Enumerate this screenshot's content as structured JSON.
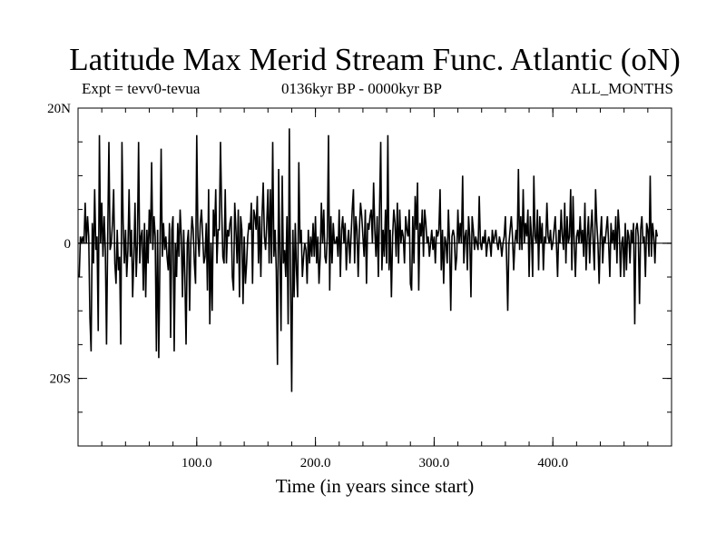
{
  "header": {
    "title": "Latitude Max Merid Stream Func. Atlantic (oN)",
    "left_label": "Expt = tevv0-tevua",
    "center_label": "0136kyr BP - 0000kyr BP",
    "right_label": "ALL_MONTHS"
  },
  "chart_data": {
    "type": "line",
    "title": "Latitude Max Merid Stream Func. Atlantic (oN)",
    "xlabel": "Time (in years since start)",
    "ylabel": "",
    "xlim": [
      0,
      500
    ],
    "ylim": [
      -30,
      20
    ],
    "x_ticks": [
      {
        "value": 100,
        "label": "100.0"
      },
      {
        "value": 200,
        "label": "200.0"
      },
      {
        "value": 300,
        "label": "300.0"
      },
      {
        "value": 400,
        "label": "400.0"
      }
    ],
    "y_ticks": [
      {
        "value": 20,
        "label": "20N"
      },
      {
        "value": 0,
        "label": "0"
      },
      {
        "value": -20,
        "label": "20S"
      }
    ],
    "x_minor_step": 20,
    "y_minor_step": 5,
    "grid": false,
    "line_color": "#000000",
    "series": [
      {
        "x_start": 1,
        "x_step": 1,
        "values": [
          -5,
          1,
          0,
          1,
          0,
          6,
          0,
          4,
          1,
          -11,
          -16,
          3,
          -3,
          8,
          -1,
          1,
          -13,
          16,
          0,
          6,
          -2,
          4,
          -1,
          -15,
          1,
          15,
          -1,
          0,
          3,
          8,
          -3,
          -6,
          2,
          -4,
          -2,
          -15,
          15,
          3,
          -3,
          2,
          -5,
          -1,
          8,
          -2,
          2,
          -8,
          -2,
          6,
          -5,
          0,
          15,
          -3,
          1,
          2,
          -7,
          3,
          -8,
          2,
          -3,
          5,
          0,
          12,
          -1,
          4,
          1,
          -16,
          2,
          -17,
          -2,
          14,
          -2,
          3,
          -1,
          1,
          -2,
          -4,
          3,
          -14,
          2,
          4,
          -16,
          0,
          -5,
          3,
          -2,
          5,
          1,
          -8,
          2,
          -5,
          -15,
          0,
          2,
          -10,
          0,
          4,
          2,
          -3,
          -6,
          16,
          1,
          -2,
          3,
          5,
          1,
          -3,
          -2,
          3,
          -7,
          8,
          -12,
          0,
          -10,
          5,
          1,
          8,
          -3,
          2,
          2,
          15,
          5,
          -2,
          -3,
          8,
          -3,
          2,
          1,
          3,
          4,
          -5,
          -7,
          6,
          2,
          -3,
          5,
          -8,
          4,
          2,
          -9,
          1,
          -6,
          -3,
          1,
          3,
          2,
          6,
          -6,
          5,
          4,
          2,
          7,
          -3,
          4,
          -5,
          4,
          9,
          1,
          -1,
          3,
          8,
          -3,
          8,
          -3,
          15,
          -2,
          2,
          -4,
          -18,
          11,
          -1,
          -13,
          10,
          -3,
          -1,
          -5,
          4,
          -12,
          17,
          -5,
          -22,
          2,
          -8,
          3,
          -4,
          -8,
          12,
          0,
          2,
          -5,
          -2,
          0,
          -1,
          -6,
          2,
          -3,
          1,
          -2,
          3,
          -2,
          4,
          -3,
          1,
          -6,
          -2,
          6,
          0,
          5,
          -2,
          -3,
          1,
          16,
          -7,
          4,
          -3,
          3,
          0,
          0,
          1,
          -2,
          5,
          -5,
          2,
          4,
          0,
          3,
          -4,
          0,
          2,
          -3,
          1,
          5,
          8,
          -3,
          4,
          2,
          -5,
          2,
          6,
          4,
          1,
          -2,
          5,
          -6,
          3,
          2,
          4,
          5,
          0,
          9,
          2,
          -2,
          4,
          -5,
          5,
          15,
          -4,
          2,
          -2,
          5,
          -3,
          16,
          -4,
          2,
          -8,
          1,
          5,
          3,
          -2,
          6,
          -3,
          5,
          0,
          2,
          1,
          -3,
          4,
          2,
          1,
          5,
          -6,
          -7,
          4,
          -3,
          7,
          2,
          9,
          -7,
          3,
          1,
          5,
          -2,
          5,
          3,
          0,
          1,
          -2,
          0,
          2,
          -1,
          1,
          -3,
          2,
          1,
          2,
          8,
          -4,
          2,
          -6,
          1,
          0,
          -3,
          5,
          0,
          -10,
          1,
          2,
          1,
          -4,
          -2,
          5,
          0,
          3,
          0,
          10,
          -3,
          1,
          2,
          -4,
          4,
          1,
          -8,
          4,
          2,
          -1,
          1,
          0,
          -1,
          7,
          0,
          -1,
          1,
          0,
          2,
          -2,
          0,
          1,
          0,
          -2,
          2,
          0,
          1,
          2,
          0,
          -1,
          1,
          0,
          -2,
          0,
          1,
          4,
          -2,
          -10,
          0,
          2,
          4,
          1,
          -4,
          0,
          2,
          0,
          11,
          -1,
          4,
          -1,
          8,
          0,
          3,
          1,
          5,
          -5,
          4,
          1,
          -5,
          10,
          1,
          0,
          5,
          -4,
          4,
          0,
          3,
          -4,
          1,
          0,
          6,
          1,
          0,
          2,
          -1,
          0,
          2,
          4,
          0,
          -5,
          2,
          0,
          5,
          1,
          -1,
          6,
          -3,
          4,
          0,
          1,
          8,
          -4,
          7,
          0,
          -5,
          1,
          2,
          0,
          4,
          0,
          2,
          -2,
          6,
          -4,
          1,
          4,
          -3,
          2,
          5,
          0,
          -4,
          8,
          3,
          0,
          -6,
          1,
          4,
          -3,
          1,
          0,
          2,
          4,
          0,
          -5,
          3,
          0,
          2,
          -1,
          4,
          -3,
          5,
          2,
          -5,
          0,
          1,
          -5,
          3,
          -4,
          2,
          1,
          -3,
          2,
          0,
          3,
          -12,
          2,
          3,
          1,
          -9,
          2,
          4,
          0,
          1,
          -5,
          3,
          2,
          -2,
          10,
          -2,
          3,
          1,
          -3,
          2,
          1
        ]
      }
    ]
  }
}
